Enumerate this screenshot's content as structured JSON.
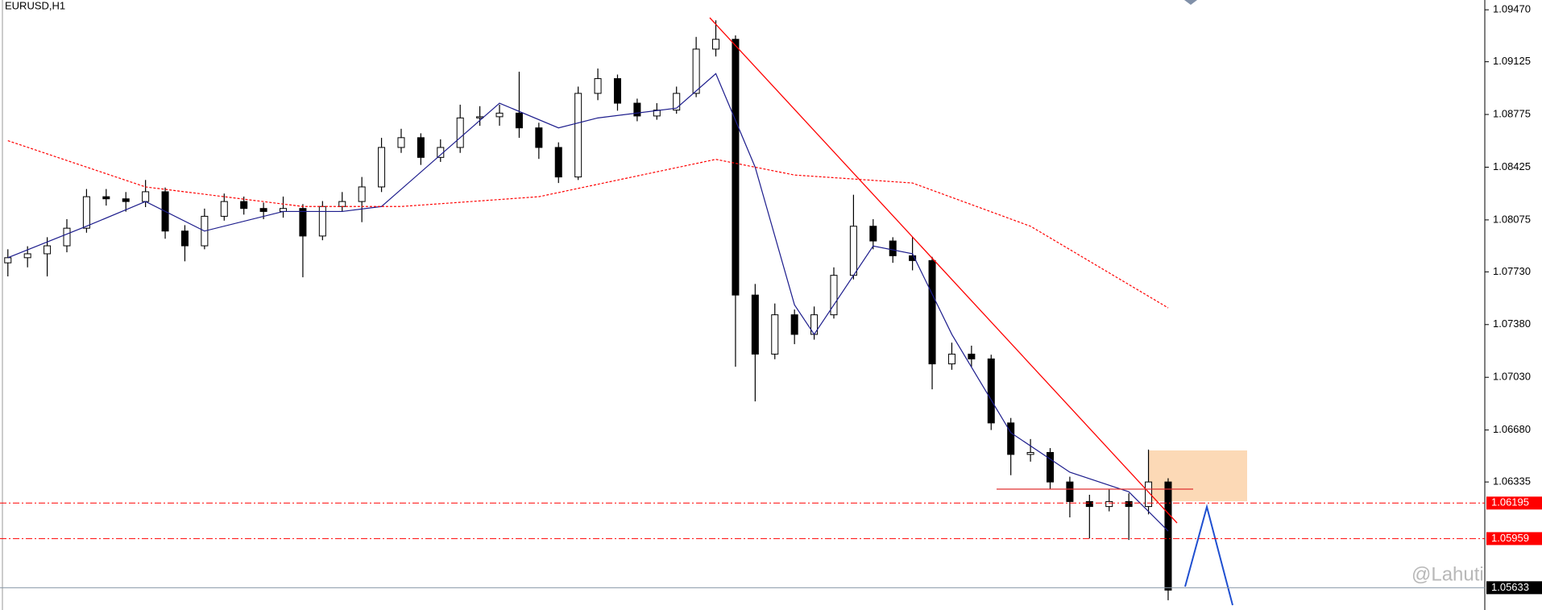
{
  "chart_data": {
    "type": "candlestick",
    "title": "EURUSD,H1",
    "watermark": "@Lahuti",
    "bull_color": "#ffffff",
    "bear_color": "#000000",
    "wick_color": "#000000",
    "ylim": [
      1.05485,
      1.09535
    ],
    "yticks": [
      {
        "value": 1.0947,
        "label": "1.09470"
      },
      1.09125,
      1.08775,
      1.08425,
      1.08075,
      {
        "value": 1.0773,
        "label": "1.07730"
      },
      {
        "value": 1.0738,
        "label": "1.07380"
      },
      {
        "value": 1.0703,
        "label": "1.07030"
      },
      {
        "value": 1.0668,
        "label": "1.06680"
      },
      1.06335
    ],
    "open": [
      1.0779,
      1.07824,
      1.0785,
      1.07903,
      1.0802,
      1.08229,
      1.08215,
      1.08197,
      1.08262,
      1.08001,
      1.07903,
      1.08099,
      1.08197,
      1.08151,
      1.08131,
      1.08151,
      1.07968,
      1.08164,
      1.08197,
      1.08294,
      1.08556,
      1.08621,
      1.0849,
      1.08556,
      1.08752,
      1.0876,
      1.08784,
      1.08686,
      1.08556,
      1.0836,
      1.08915,
      1.09013,
      1.0885,
      1.08765,
      1.08804,
      1.08915,
      1.09209,
      1.09274,
      1.07576,
      1.07184,
      1.07445,
      1.07315,
      1.07445,
      1.07707,
      1.08033,
      1.07935,
      1.07837,
      1.07805,
      1.07119,
      1.07184,
      1.07152,
      1.06727,
      1.06518,
      1.06531,
      1.06335,
      1.06205,
      1.06172,
      1.06205,
      1.06172,
      1.06335
    ],
    "high": [
      1.0788,
      1.079,
      1.0796,
      1.0808,
      1.0828,
      1.0828,
      1.0826,
      1.0834,
      1.0829,
      1.0804,
      1.0815,
      1.0825,
      1.0823,
      1.0819,
      1.0823,
      1.0818,
      1.082,
      1.0826,
      1.0836,
      1.0862,
      1.0868,
      1.0865,
      1.0861,
      1.0884,
      1.0883,
      1.0884,
      1.09059,
      1.0872,
      1.0859,
      1.0896,
      1.0908,
      1.0904,
      1.0888,
      1.0885,
      1.0896,
      1.0929,
      1.094,
      1.093,
      1.0765,
      1.0752,
      1.0748,
      1.075,
      1.0776,
      1.08242,
      1.0808,
      1.0796,
      1.0796,
      1.0783,
      1.0726,
      1.0724,
      1.0718,
      1.0676,
      1.0662,
      1.0656,
      1.0637,
      1.0625,
      1.0629,
      1.0626,
      1.0655,
      1.0636
    ],
    "low": [
      1.077,
      1.0776,
      1.077,
      1.0786,
      1.0799,
      1.0817,
      1.0813,
      1.0816,
      1.0795,
      1.078,
      1.0788,
      1.0807,
      1.0811,
      1.0808,
      1.0809,
      1.07694,
      1.0794,
      1.0813,
      1.0806,
      1.0826,
      1.0852,
      1.0844,
      1.0846,
      1.0852,
      1.087,
      1.087,
      1.0862,
      1.0848,
      1.0832,
      1.0834,
      1.0887,
      1.088,
      1.0873,
      1.0874,
      1.0878,
      1.0889,
      1.0916,
      1.071,
      1.0687,
      1.0715,
      1.0725,
      1.0728,
      1.0742,
      1.0768,
      1.0788,
      1.0779,
      1.0774,
      1.0695,
      1.0708,
      1.071,
      1.0668,
      1.0638,
      1.0647,
      1.0629,
      1.061,
      1.0596,
      1.0614,
      1.0595,
      1.0612,
      1.0555
    ],
    "close": [
      1.07824,
      1.0785,
      1.07903,
      1.0802,
      1.08229,
      1.08215,
      1.08197,
      1.08262,
      1.08001,
      1.07903,
      1.08099,
      1.08197,
      1.08151,
      1.08131,
      1.08151,
      1.07968,
      1.08164,
      1.08197,
      1.08294,
      1.08556,
      1.08621,
      1.0849,
      1.08556,
      1.08752,
      1.0876,
      1.08784,
      1.08686,
      1.08556,
      1.0836,
      1.08915,
      1.09013,
      1.0885,
      1.08765,
      1.08804,
      1.08915,
      1.09209,
      1.09274,
      1.07576,
      1.07184,
      1.07445,
      1.07315,
      1.07445,
      1.07707,
      1.08033,
      1.07935,
      1.07837,
      1.07805,
      1.07119,
      1.07184,
      1.07152,
      1.06727,
      1.06518,
      1.06531,
      1.06335,
      1.06205,
      1.06172,
      1.06205,
      1.06172,
      1.06335,
      1.05617
    ],
    "overlays": [
      {
        "color": "#1c1c8c",
        "x": [
          0,
          4,
          7,
          10,
          14,
          17,
          19,
          23,
          25,
          28,
          30,
          34,
          36,
          38,
          40,
          41,
          44,
          46,
          48,
          51,
          54,
          57,
          59
        ],
        "values": [
          1.07824,
          1.08033,
          1.08197,
          1.08001,
          1.08131,
          1.08131,
          1.08164,
          1.08621,
          1.0885,
          1.08686,
          1.08752,
          1.08817,
          1.09046,
          1.08425,
          1.07511,
          1.07315,
          1.07902,
          1.0785,
          1.07315,
          1.06662,
          1.064,
          1.0627,
          1.06009
        ]
      },
      {
        "color": "#ff0000",
        "dashed": true,
        "x": [
          0,
          7,
          15,
          20,
          27,
          36,
          40,
          46,
          52,
          59
        ],
        "values": [
          1.08601,
          1.08294,
          1.08164,
          1.08164,
          1.08229,
          1.08477,
          1.08373,
          1.0832,
          1.08033,
          1.07491
        ]
      }
    ],
    "levels": [
      {
        "value": 1.06195,
        "color": "#ff0000",
        "label_bg": "#ff0000",
        "dashed": true
      },
      {
        "value": 1.05959,
        "color": "#ff0000",
        "label_bg": "#ff0000",
        "dashed": true
      },
      {
        "value": 1.05633,
        "color": "#8a9aa8",
        "label_bg": "#000000",
        "dashed": false
      }
    ]
  }
}
